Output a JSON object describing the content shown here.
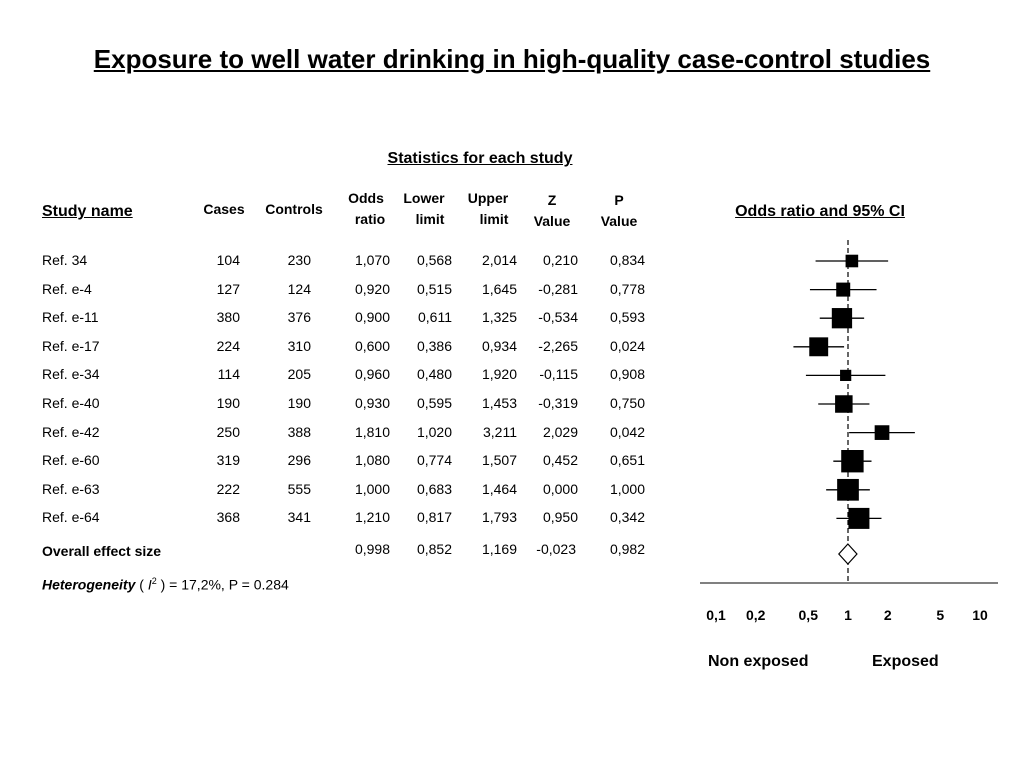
{
  "title": "Exposure to well water drinking in high-quality case-control studies",
  "stats_heading": "Statistics for each study",
  "columns": {
    "study": "Study name",
    "cases": "Cases",
    "controls": "Controls",
    "or_1": "Odds",
    "or_2": "ratio",
    "lower_1": "Lower",
    "lower_2": "limit",
    "upper_1": "Upper",
    "upper_2": "limit",
    "z_1": "Z",
    "z_2": "Value",
    "p_1": "P",
    "p_2": "Value"
  },
  "forest_heading": "Odds ratio and 95% CI",
  "studies": [
    {
      "name": "Ref. 34",
      "cases": "104",
      "controls": "230",
      "or": "1,070",
      "lower": "0,568",
      "upper": "2,014",
      "z": "0,210",
      "p": "0,834"
    },
    {
      "name": "Ref. e-4",
      "cases": "127",
      "controls": "124",
      "or": "0,920",
      "lower": "0,515",
      "upper": "1,645",
      "z": "-0,281",
      "p": "0,778"
    },
    {
      "name": "Ref. e-11",
      "cases": "380",
      "controls": "376",
      "or": "0,900",
      "lower": "0,611",
      "upper": "1,325",
      "z": "-0,534",
      "p": "0,593"
    },
    {
      "name": "Ref. e-17",
      "cases": "224",
      "controls": "310",
      "or": "0,600",
      "lower": "0,386",
      "upper": "0,934",
      "z": "-2,265",
      "p": "0,024"
    },
    {
      "name": "Ref. e-34",
      "cases": "114",
      "controls": "205",
      "or": "0,960",
      "lower": "0,480",
      "upper": "1,920",
      "z": "-0,115",
      "p": "0,908"
    },
    {
      "name": "Ref. e-40",
      "cases": "190",
      "controls": "190",
      "or": "0,930",
      "lower": "0,595",
      "upper": "1,453",
      "z": "-0,319",
      "p": "0,750"
    },
    {
      "name": "Ref. e-42",
      "cases": "250",
      "controls": "388",
      "or": "1,810",
      "lower": "1,020",
      "upper": "3,211",
      "z": "2,029",
      "p": "0,042"
    },
    {
      "name": "Ref. e-60",
      "cases": "319",
      "controls": "296",
      "or": "1,080",
      "lower": "0,774",
      "upper": "1,507",
      "z": "0,452",
      "p": "0,651"
    },
    {
      "name": "Ref. e-63",
      "cases": "222",
      "controls": "555",
      "or": "1,000",
      "lower": "0,683",
      "upper": "1,464",
      "z": "0,000",
      "p": "1,000"
    },
    {
      "name": "Ref. e-64",
      "cases": "368",
      "controls": "341",
      "or": "1,210",
      "lower": "0,817",
      "upper": "1,793",
      "z": "0,950",
      "p": "0,342"
    }
  ],
  "overall": {
    "name": "Overall effect size",
    "or": "0,998",
    "lower": "0,852",
    "upper": "1,169",
    "z": "-0,023",
    "p": "0,982"
  },
  "heterogeneity": {
    "label": "Heterogeneity",
    "open": "( ",
    "symbol": "I",
    "sup": "2",
    "rest": " ) = 17,2%, P = 0.284"
  },
  "axis_labels": {
    "left": "Non exposed",
    "right": "Exposed"
  },
  "chart_data": {
    "type": "forest",
    "x_scale": "log",
    "xlim": [
      0.1,
      10
    ],
    "ticks": [
      0.1,
      0.2,
      0.5,
      1,
      2,
      5,
      10
    ],
    "tick_labels": [
      "0,1",
      "0,2",
      "0,5",
      "1",
      "2",
      "5",
      "10"
    ],
    "reference_line": 1,
    "points": [
      {
        "label": "Ref. 34",
        "or": 1.07,
        "lower": 0.568,
        "upper": 2.014,
        "weight": 0.9
      },
      {
        "label": "Ref. e-4",
        "or": 0.92,
        "lower": 0.515,
        "upper": 1.645,
        "weight": 1.0
      },
      {
        "label": "Ref. e-11",
        "or": 0.9,
        "lower": 0.611,
        "upper": 1.325,
        "weight": 1.45
      },
      {
        "label": "Ref. e-17",
        "or": 0.6,
        "lower": 0.386,
        "upper": 0.934,
        "weight": 1.35
      },
      {
        "label": "Ref. e-34",
        "or": 0.96,
        "lower": 0.48,
        "upper": 1.92,
        "weight": 0.8
      },
      {
        "label": "Ref. e-40",
        "or": 0.93,
        "lower": 0.595,
        "upper": 1.453,
        "weight": 1.25
      },
      {
        "label": "Ref. e-42",
        "or": 1.81,
        "lower": 1.02,
        "upper": 3.211,
        "weight": 1.05
      },
      {
        "label": "Ref. e-60",
        "or": 1.08,
        "lower": 0.774,
        "upper": 1.507,
        "weight": 1.6
      },
      {
        "label": "Ref. e-63",
        "or": 1.0,
        "lower": 0.683,
        "upper": 1.464,
        "weight": 1.55
      },
      {
        "label": "Ref. e-64",
        "or": 1.21,
        "lower": 0.817,
        "upper": 1.793,
        "weight": 1.5
      }
    ],
    "overall": {
      "label": "Overall effect size",
      "or": 0.998,
      "lower": 0.852,
      "upper": 1.169
    }
  }
}
